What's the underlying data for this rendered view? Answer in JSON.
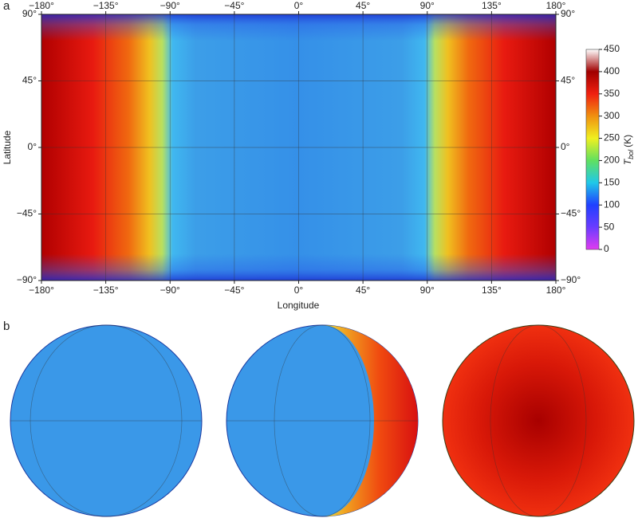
{
  "chart_data": [
    {
      "type": "map",
      "panel": "a",
      "xlabel": "Longitude",
      "ylabel": "Latitude",
      "xlim": [
        -180,
        180
      ],
      "ylim": [
        -90,
        90
      ],
      "grid": true,
      "xticks": [
        {
          "value": -180,
          "label": "−180°"
        },
        {
          "value": -135,
          "label": "−135°"
        },
        {
          "value": -90,
          "label": "−90°"
        },
        {
          "value": -45,
          "label": "−45°"
        },
        {
          "value": 0,
          "label": "0°"
        },
        {
          "value": 45,
          "label": "45°"
        },
        {
          "value": 90,
          "label": "90°"
        },
        {
          "value": 135,
          "label": "135°"
        },
        {
          "value": 180,
          "label": "180°"
        }
      ],
      "yticks": [
        {
          "value": 90,
          "label": "90°"
        },
        {
          "value": 45,
          "label": "45°"
        },
        {
          "value": 0,
          "label": "0°"
        },
        {
          "value": -45,
          "label": "−45°"
        },
        {
          "value": -90,
          "label": "−90°"
        }
      ],
      "colorbar": {
        "symbol": "T",
        "subscript": "bol",
        "unit": "(K)",
        "lim": [
          0,
          450
        ],
        "ticks": [
          0,
          50,
          100,
          150,
          200,
          250,
          300,
          350,
          400,
          450
        ],
        "colors": [
          "#e03cf0",
          "#6a3cff",
          "#2040ff",
          "#20c8e8",
          "#60e060",
          "#f0f020",
          "#f09010",
          "#f02010",
          "#a00000",
          "#ffffff"
        ]
      }
    },
    {
      "type": "globes",
      "panel": "b"
    }
  ]
}
